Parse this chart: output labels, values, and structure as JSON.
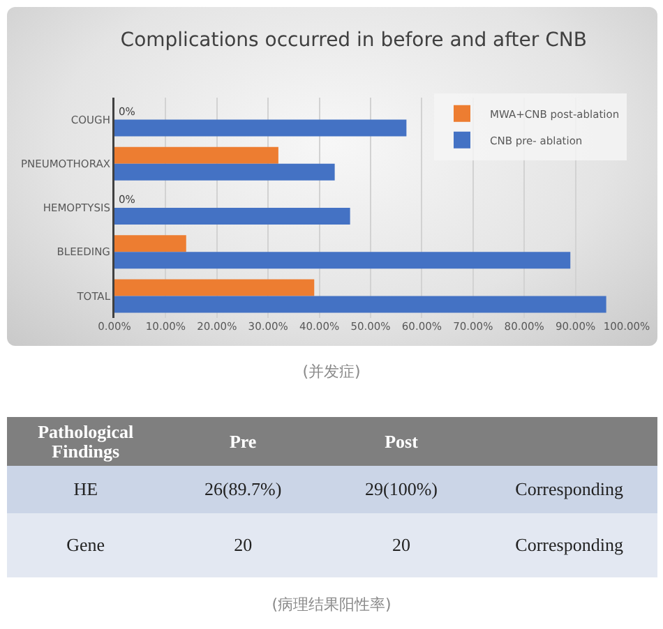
{
  "chart_data": [
    {
      "type": "bar",
      "orientation": "horizontal",
      "title": "Complications occurred in before and after CNB",
      "categories": [
        "COUGH",
        "PNEUMOTHORAX",
        "HEMOPTYSIS",
        "BLEEDING",
        "TOTAL"
      ],
      "series": [
        {
          "name": "MWA+CNB post-ablation",
          "color": "#ed7d31",
          "values": [
            0,
            32,
            0,
            14,
            39
          ],
          "value_labels": [
            "0%",
            null,
            "0%",
            null,
            null
          ]
        },
        {
          "name": "CNB pre- ablation",
          "color": "#4472c4",
          "values": [
            57,
            43,
            46,
            89,
            96
          ]
        }
      ],
      "xlim": [
        0,
        100
      ],
      "xticks": [
        {
          "value": 0,
          "label": "0.00%"
        },
        {
          "value": 10,
          "label": "10.00%"
        },
        {
          "value": 20,
          "label": "20.00%"
        },
        {
          "value": 30,
          "label": "30.00%"
        },
        {
          "value": 40,
          "label": "40.00%"
        },
        {
          "value": 50,
          "label": "50.00%"
        },
        {
          "value": 60,
          "label": "60.00%"
        },
        {
          "value": 70,
          "label": "70.00%"
        },
        {
          "value": 80,
          "label": "80.00%"
        },
        {
          "value": 90,
          "label": "90.00%"
        },
        {
          "value": 100,
          "label": "100.00%"
        }
      ],
      "grid": "x",
      "legend": "top right",
      "annotations": [
        "(并发症)"
      ]
    },
    {
      "type": "other",
      "ylabel": "Pathological Findings",
      "categories": [
        "Pre",
        "Post",
        null
      ],
      "y_categories": [
        "HE",
        "Gene"
      ],
      "cell_labels": [
        [
          "26(89.7%)",
          "29(100%)",
          "Corresponding"
        ],
        [
          "20",
          "20",
          "Corresponding"
        ]
      ],
      "annotations": [
        "(病理结果阳性率)"
      ]
    }
  ]
}
